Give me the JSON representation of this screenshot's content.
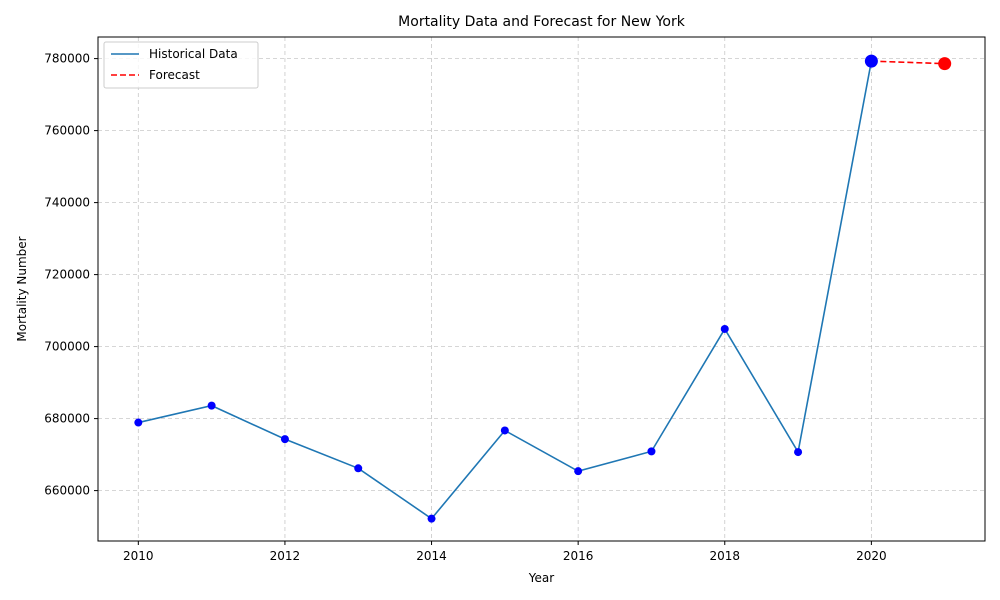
{
  "chart_data": {
    "type": "line",
    "title": "Mortality Data and Forecast for New York",
    "xlabel": "Year",
    "ylabel": "Mortality Number",
    "xlim": [
      2009.45,
      2021.55
    ],
    "ylim": [
      646000,
      786000
    ],
    "x_ticks": [
      2010,
      2012,
      2014,
      2016,
      2018,
      2020
    ],
    "y_ticks": [
      660000,
      680000,
      700000,
      720000,
      740000,
      760000,
      780000
    ],
    "grid": true,
    "legend_position": "top-left",
    "series": [
      {
        "name": "Historical Data",
        "style": "solid",
        "color": "#1f77b4",
        "marker_color": "#0000ff",
        "x": [
          2010,
          2011,
          2012,
          2013,
          2014,
          2015,
          2016,
          2017,
          2018,
          2019,
          2020
        ],
        "y": [
          678900,
          683600,
          674300,
          666200,
          652200,
          676700,
          665400,
          670900,
          704900,
          670700,
          779300
        ]
      },
      {
        "name": "Forecast",
        "style": "dashed",
        "color": "#ff0000",
        "marker_color": "#ff0000",
        "x": [
          2020,
          2021
        ],
        "y": [
          779300,
          778600
        ]
      }
    ]
  }
}
